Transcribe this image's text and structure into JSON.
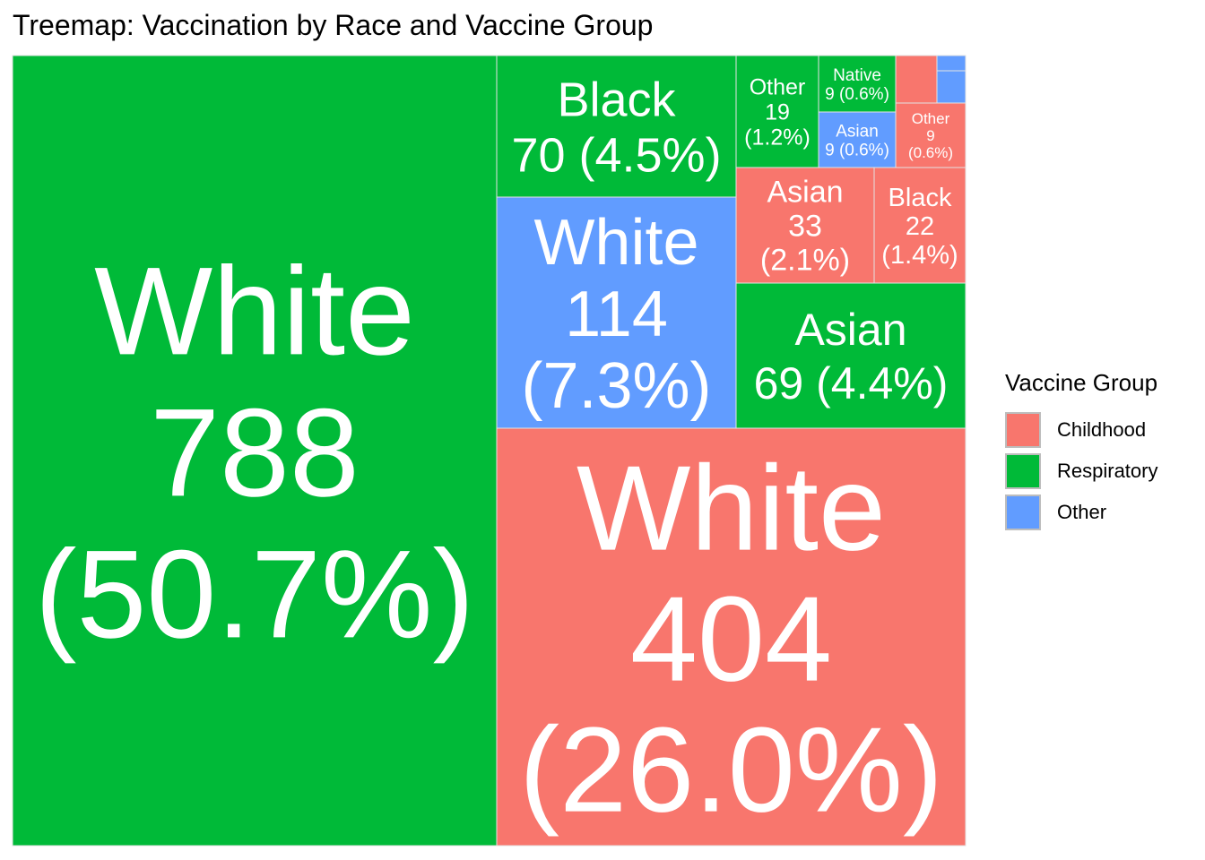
{
  "chart_data": {
    "type": "treemap",
    "title": "Treemap: Vaccination by Race and Vaccine Group",
    "legend": {
      "title": "Vaccine Group",
      "position": "right",
      "items": [
        {
          "name": "Childhood",
          "color": "#F8766D"
        },
        {
          "name": "Respiratory",
          "color": "#00BA38"
        },
        {
          "name": "Other",
          "color": "#619CFF"
        }
      ]
    },
    "tiles": [
      {
        "race": "White",
        "group": "Respiratory",
        "value": 788,
        "pct": "(50.7%)",
        "lines": [
          "White",
          "788",
          "(50.7%)"
        ]
      },
      {
        "race": "White",
        "group": "Childhood",
        "value": 404,
        "pct": "(26.0%)",
        "lines": [
          "White",
          "404",
          "(26.0%)"
        ]
      },
      {
        "race": "White",
        "group": "Other",
        "value": 114,
        "pct": "(7.3%)",
        "lines": [
          "White",
          "114",
          "(7.3%)"
        ]
      },
      {
        "race": "Black",
        "group": "Respiratory",
        "value": 70,
        "pct": "(4.5%)",
        "lines": [
          "Black",
          "70 (4.5%)"
        ]
      },
      {
        "race": "Asian",
        "group": "Respiratory",
        "value": 69,
        "pct": "(4.4%)",
        "lines": [
          "Asian",
          "69 (4.4%)"
        ]
      },
      {
        "race": "Asian",
        "group": "Childhood",
        "value": 33,
        "pct": "(2.1%)",
        "lines": [
          "Asian",
          "33",
          "(2.1%)"
        ]
      },
      {
        "race": "Black",
        "group": "Childhood",
        "value": 22,
        "pct": "(1.4%)",
        "lines": [
          "Black",
          "22",
          "(1.4%)"
        ]
      },
      {
        "race": "Other",
        "group": "Respiratory",
        "value": 19,
        "pct": "(1.2%)",
        "lines": [
          "Other",
          "19",
          "(1.2%)"
        ]
      },
      {
        "race": "Native",
        "group": "Respiratory",
        "value": 9,
        "pct": "(0.6%)",
        "lines": [
          "Native",
          "9 (0.6%)"
        ]
      },
      {
        "race": "Asian",
        "group": "Other",
        "value": 9,
        "pct": "(0.6%)",
        "lines": [
          "Asian",
          "9 (0.6%)"
        ]
      },
      {
        "race": "Other",
        "group": "Childhood",
        "value": 9,
        "pct": "(0.6%)",
        "lines": [
          "Other",
          "9",
          "(0.6%)"
        ]
      },
      {
        "race": "",
        "group": "Childhood",
        "value": null,
        "pct": "",
        "lines": []
      },
      {
        "race": "",
        "group": "Other",
        "value": null,
        "pct": "",
        "lines": []
      },
      {
        "race": "",
        "group": "Other",
        "value": null,
        "pct": "",
        "lines": []
      }
    ]
  }
}
